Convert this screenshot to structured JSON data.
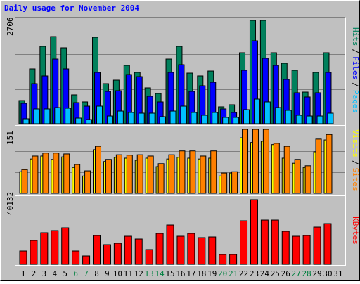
{
  "chart_data": [
    {
      "type": "bar",
      "title": "Daily usage for November 2004",
      "title_color": "#0000ff",
      "legend_separator": "/",
      "series": [
        {
          "name": "Hits",
          "color": "#00805c",
          "values": [
            607,
            1436,
            2025,
            2282,
            1988,
            755,
            571,
            2264,
            1049,
            1141,
            1528,
            1344,
            939,
            791,
            1693,
            2025,
            1325,
            1252,
            1380,
            442,
            497,
            1859,
            2706,
            2706,
            1859,
            1583,
            1399,
            828,
            1344,
            1859,
            0
          ]
        },
        {
          "name": "Files",
          "color": "#0000ff",
          "values": [
            534,
            1049,
            1252,
            1693,
            1436,
            552,
            460,
            1344,
            847,
            865,
            1289,
            1233,
            718,
            571,
            1344,
            1546,
            847,
            994,
            1086,
            387,
            295,
            1399,
            2172,
            1712,
            1528,
            1160,
            810,
            700,
            810,
            1344,
            0
          ]
        },
        {
          "name": "Pages",
          "color": "#00c0ff",
          "values": [
            129,
            387,
            387,
            423,
            405,
            147,
            110,
            460,
            202,
            331,
            295,
            276,
            276,
            184,
            331,
            460,
            295,
            221,
            295,
            166,
            166,
            368,
            644,
            571,
            423,
            350,
            221,
            202,
            202,
            276,
            0
          ]
        }
      ],
      "ylim": [
        0,
        2706
      ],
      "yticks": [
        2706
      ]
    },
    {
      "type": "bar",
      "legend_separator": "/",
      "series": [
        {
          "name": "Visits",
          "color": "#ffff00",
          "values": [
            51,
            81,
            88,
            80,
            86,
            61,
            41,
            103,
            75,
            85,
            83,
            78,
            83,
            63,
            81,
            85,
            83,
            81,
            83,
            41,
            48,
            131,
            120,
            123,
            115,
            83,
            71,
            61,
            98,
            126,
            0
          ]
        },
        {
          "name": "Sites",
          "color": "#ff8000",
          "values": [
            56,
            88,
            95,
            95,
            93,
            68,
            53,
            111,
            80,
            91,
            90,
            91,
            88,
            70,
            91,
            100,
            100,
            88,
            100,
            48,
            51,
            151,
            151,
            151,
            118,
            111,
            80,
            65,
            128,
            139,
            0
          ]
        }
      ],
      "ylim": [
        0,
        151
      ],
      "yticks": [
        151
      ]
    },
    {
      "type": "bar",
      "categories": [
        "1",
        "2",
        "3",
        "4",
        "5",
        "6",
        "7",
        "8",
        "9",
        "10",
        "11",
        "12",
        "13",
        "14",
        "15",
        "16",
        "17",
        "18",
        "19",
        "20",
        "21",
        "22",
        "23",
        "24",
        "25",
        "26",
        "27",
        "28",
        "29",
        "30",
        "31"
      ],
      "category_colors": [
        "#000000",
        "#000000",
        "#000000",
        "#000000",
        "#000000",
        "#008040",
        "#008040",
        "#000000",
        "#000000",
        "#000000",
        "#000000",
        "#000000",
        "#008040",
        "#008040",
        "#000000",
        "#000000",
        "#000000",
        "#000000",
        "#000000",
        "#008040",
        "#008040",
        "#000000",
        "#000000",
        "#000000",
        "#000000",
        "#000000",
        "#008040",
        "#008040",
        "#000000",
        "#000000",
        "#000000"
      ],
      "series": [
        {
          "name": "KBytes",
          "color": "#ff0000",
          "values": [
            8284,
            14824,
            19620,
            20930,
            22670,
            8284,
            5232,
            17876,
            12208,
            13080,
            17440,
            15696,
            9156,
            19184,
            24416,
            17440,
            19184,
            16568,
            17004,
            6104,
            6104,
            27032,
            40132,
            27468,
            27468,
            20492,
            17440,
            17876,
            23108,
            25288,
            0
          ]
        }
      ],
      "ylim": [
        0,
        40132
      ],
      "yticks": [
        40132
      ]
    }
  ]
}
